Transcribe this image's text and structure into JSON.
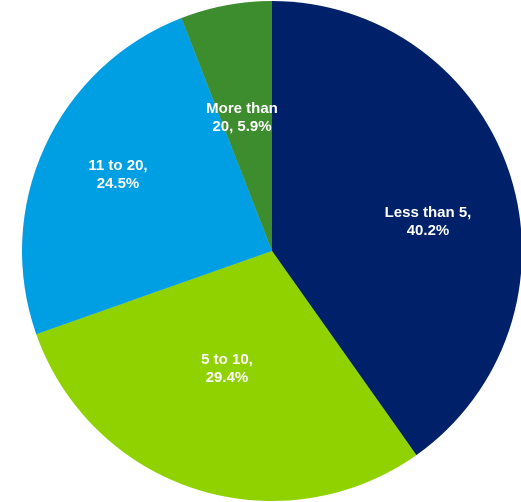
{
  "chart_data": {
    "type": "pie",
    "title": "",
    "start_angle_deg": 0,
    "direction": "clockwise",
    "slices": [
      {
        "label_lines": [
          "Less than 5,",
          "40.2%"
        ],
        "category": "Less than 5",
        "value": 40.2,
        "color": "#002169"
      },
      {
        "label_lines": [
          "5 to 10,",
          "29.4%"
        ],
        "category": "5 to 10",
        "value": 29.4,
        "color": "#8fd200"
      },
      {
        "label_lines": [
          "11 to 20,",
          "24.5%"
        ],
        "category": "11 to 20",
        "value": 24.5,
        "color": "#009fe3"
      },
      {
        "label_lines": [
          "More than",
          "20, 5.9%"
        ],
        "category": "More than 20",
        "value": 5.9,
        "color": "#3d8c2e"
      }
    ],
    "legend": "none"
  }
}
